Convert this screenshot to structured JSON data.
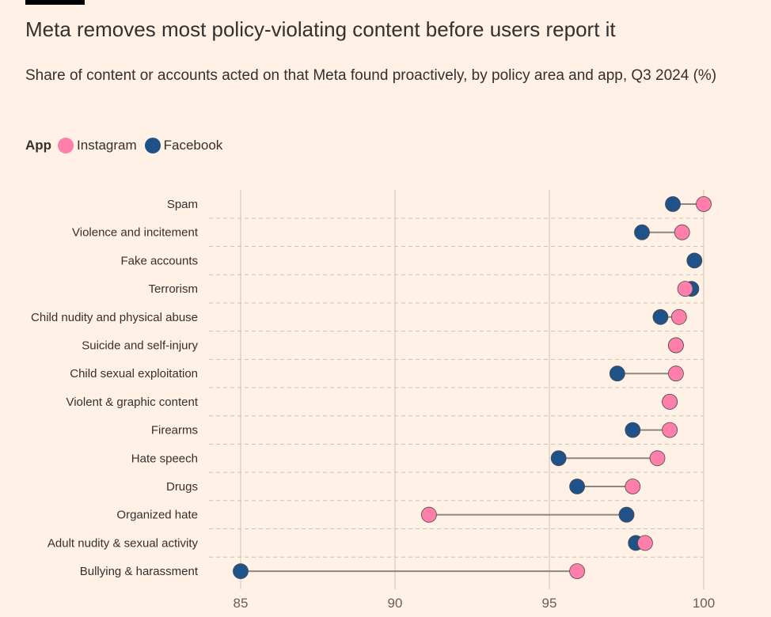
{
  "header": {
    "title": "Meta removes most policy-violating content before users report it",
    "subtitle": "Share of content or accounts acted on that Meta found proactively, by policy area and app, Q3 2024 (%)"
  },
  "legend": {
    "title": "App",
    "items": [
      {
        "label": "Instagram",
        "color": "#ff7faa"
      },
      {
        "label": "Facebook",
        "color": "#1f5289"
      }
    ]
  },
  "colors": {
    "instagram": "#ff7faa",
    "facebook": "#1f5289",
    "connector": "#8c8783",
    "grid": "#ccc1b7",
    "background": "#fff1e5"
  },
  "chart_data": {
    "type": "dot-range",
    "title": "Meta removes most policy-violating content before users report it",
    "subtitle": "Share of content or accounts acted on that Meta found proactively, by policy area and app, Q3 2024 (%)",
    "xlim": [
      85,
      100
    ],
    "xticks": [
      85,
      90,
      95,
      100
    ],
    "grid": true,
    "legend_position": "top-left",
    "categories": [
      "Spam",
      "Violence and incitement",
      "Fake accounts",
      "Terrorism",
      "Child nudity and physical abuse",
      "Suicide and self-injury",
      "Child sexual exploitation",
      "Violent & graphic content",
      "Firearms",
      "Hate speech",
      "Drugs",
      "Organized hate",
      "Adult nudity & sexual activity",
      "Bullying & harassment"
    ],
    "series": [
      {
        "name": "Instagram",
        "values": [
          100.0,
          99.3,
          null,
          99.4,
          99.2,
          99.1,
          99.1,
          98.9,
          98.9,
          98.5,
          97.7,
          91.1,
          98.1,
          95.9
        ]
      },
      {
        "name": "Facebook",
        "values": [
          99.0,
          98.0,
          99.7,
          99.6,
          98.6,
          99.1,
          97.2,
          98.9,
          97.7,
          95.3,
          95.9,
          97.5,
          97.8,
          85.0
        ]
      }
    ]
  }
}
